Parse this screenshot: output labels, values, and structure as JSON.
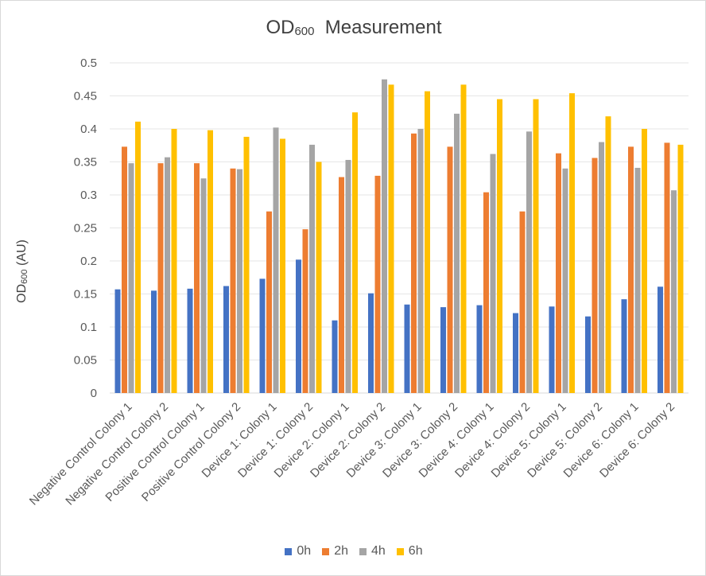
{
  "chart_data": {
    "type": "bar",
    "title_main": "OD",
    "title_sub": "600",
    "title_rest": "  Measurement",
    "ylabel_main": "OD",
    "ylabel_sub": "600",
    "ylabel_rest": " (AU)",
    "ylim": [
      0,
      0.5
    ],
    "yticks": [
      "0",
      "0.05",
      "0.1",
      "0.15",
      "0.2",
      "0.25",
      "0.3",
      "0.35",
      "0.4",
      "0.45",
      "0.5"
    ],
    "grid": true,
    "legend_position": "bottom",
    "categories": [
      "Negative Control Colony 1",
      "Negative Control Colony 2",
      "Positive Control Colony 1",
      "Positive Control Colony 2",
      "Device 1: Colony 1",
      "Device 1: Colony 2",
      "Device 2: Colony 1",
      "Device 2: Colony 2",
      "Device 3: Colony 1",
      "Device 3: Colony 2",
      "Device 4: Colony 1",
      "Device 4: Colony 2",
      "Device 5: Colony 1",
      "Device 5: Colony 2",
      "Device 6: Colony 1",
      "Device 6: Colony 2"
    ],
    "series": [
      {
        "name": "0h",
        "color": "#4472C4",
        "values": [
          0.157,
          0.155,
          0.158,
          0.162,
          0.173,
          0.202,
          0.11,
          0.151,
          0.134,
          0.13,
          0.133,
          0.121,
          0.131,
          0.116,
          0.142,
          0.161
        ]
      },
      {
        "name": "2h",
        "color": "#ED7D31",
        "values": [
          0.373,
          0.348,
          0.348,
          0.34,
          0.275,
          0.248,
          0.327,
          0.329,
          0.393,
          0.373,
          0.304,
          0.275,
          0.363,
          0.356,
          0.373,
          0.379
        ]
      },
      {
        "name": "4h",
        "color": "#A5A5A5",
        "values": [
          0.348,
          0.357,
          0.325,
          0.339,
          0.402,
          0.376,
          0.353,
          0.475,
          0.4,
          0.423,
          0.362,
          0.396,
          0.34,
          0.38,
          0.341,
          0.307
        ]
      },
      {
        "name": "6h",
        "color": "#FFC000",
        "values": [
          0.411,
          0.4,
          0.398,
          0.388,
          0.385,
          0.35,
          0.425,
          0.467,
          0.457,
          0.467,
          0.445,
          0.445,
          0.454,
          0.419,
          0.4,
          0.376
        ]
      }
    ]
  }
}
